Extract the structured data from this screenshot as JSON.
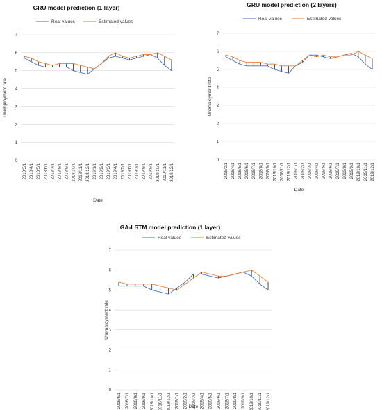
{
  "chart_data": [
    {
      "type": "line",
      "title": "GRU model prediction (1 layer)",
      "xlabel": "Date",
      "ylabel": "Unemployment rate",
      "ylim": [
        0,
        7
      ],
      "yticks": [
        "0",
        "1",
        "2",
        "3",
        "4",
        "5",
        "6",
        "7"
      ],
      "grid": true,
      "legend_position": "top",
      "categories": [
        "2018/3/1",
        "2018/4/1",
        "2018/5/1",
        "2018/6/1",
        "2018/7/1",
        "2018/8/1",
        "2018/9/1",
        "2018/10/1",
        "2018/11/1",
        "2018/12/1",
        "2019/1/1",
        "2019/2/1",
        "2019/3/1",
        "2019/4/1",
        "2019/5/1",
        "2019/6/1",
        "2019/7/1",
        "2019/8/1",
        "2019/9/1",
        "2019/10/1",
        "2019/11/1",
        "2019/12/1"
      ],
      "series": [
        {
          "name": "Real values",
          "color": "#4472c4",
          "values": [
            5.7,
            5.5,
            5.3,
            5.2,
            5.2,
            5.2,
            5.2,
            5.0,
            4.9,
            4.8,
            5.1,
            5.4,
            5.7,
            5.8,
            5.7,
            5.6,
            5.7,
            5.8,
            5.9,
            5.7,
            5.3,
            5.0
          ]
        },
        {
          "name": "Estimated values",
          "color": "#ed7d31",
          "values": [
            5.8,
            5.7,
            5.5,
            5.4,
            5.3,
            5.4,
            5.4,
            5.4,
            5.3,
            5.2,
            5.1,
            5.4,
            5.8,
            6.0,
            5.8,
            5.7,
            5.8,
            5.9,
            5.9,
            6.0,
            5.8,
            5.6
          ]
        }
      ]
    },
    {
      "type": "line",
      "title": "GRU model prediction (2 layers)",
      "xlabel": "Date",
      "ylabel": "Unemployment rate",
      "ylim": [
        0,
        7
      ],
      "yticks": [
        "0",
        "1",
        "2",
        "3",
        "4",
        "5",
        "6",
        "7"
      ],
      "grid": true,
      "legend_position": "top",
      "categories": [
        "2018/3/1",
        "2018/4/1",
        "2018/5/1",
        "2018/6/1",
        "2018/7/1",
        "2018/8/1",
        "2018/9/1",
        "2018/10/1",
        "2018/11/1",
        "2018/12/1",
        "2019/1/1",
        "2019/2/1",
        "2019/3/1",
        "2019/4/1",
        "2019/5/1",
        "2019/6/1",
        "2019/7/1",
        "2019/8/1",
        "2019/9/1",
        "2019/10/1",
        "2019/11/1",
        "2019/12/1"
      ],
      "series": [
        {
          "name": "Real values",
          "color": "#4472c4",
          "values": [
            5.7,
            5.5,
            5.3,
            5.2,
            5.2,
            5.2,
            5.2,
            5.0,
            4.9,
            4.8,
            5.2,
            5.4,
            5.8,
            5.8,
            5.7,
            5.6,
            5.7,
            5.8,
            5.9,
            5.7,
            5.3,
            5.0
          ]
        },
        {
          "name": "Estimated values",
          "color": "#ed7d31",
          "values": [
            5.8,
            5.7,
            5.5,
            5.4,
            5.4,
            5.4,
            5.3,
            5.3,
            5.2,
            5.2,
            5.2,
            5.5,
            5.8,
            5.7,
            5.8,
            5.7,
            5.7,
            5.8,
            5.8,
            6.0,
            5.8,
            5.6
          ]
        }
      ]
    },
    {
      "type": "line",
      "title": "GA-LSTM model prediction (1 layer)",
      "xlabel": "Date",
      "ylabel": "Unemployment rate",
      "ylim": [
        0,
        7
      ],
      "yticks": [
        "0",
        "1",
        "2",
        "3",
        "4",
        "5",
        "6",
        "7"
      ],
      "grid": true,
      "legend_position": "top",
      "categories": [
        "2018/6/1",
        "2018/7/1",
        "2018/8/1",
        "2018/9/1",
        "2018/10/1",
        "2018/11/1",
        "2018/12/1",
        "2019/1/1",
        "2019/2/1",
        "2019/3/1",
        "2019/4/1",
        "2019/5/1",
        "2019/6/1",
        "2019/7/1",
        "2019/8/1",
        "2019/9/1",
        "2019/10/1",
        "2019/11/1",
        "2019/12/1"
      ],
      "series": [
        {
          "name": "Real values",
          "color": "#4472c4",
          "values": [
            5.2,
            5.2,
            5.2,
            5.2,
            5.0,
            4.9,
            4.8,
            5.1,
            5.4,
            5.8,
            5.8,
            5.7,
            5.6,
            5.7,
            5.8,
            5.9,
            5.7,
            5.3,
            5.0
          ]
        },
        {
          "name": "Estimated values",
          "color": "#ed7d31",
          "values": [
            5.4,
            5.3,
            5.3,
            5.3,
            5.3,
            5.2,
            5.1,
            5.0,
            5.3,
            5.6,
            5.9,
            5.8,
            5.7,
            5.7,
            5.8,
            5.9,
            6.0,
            5.7,
            5.4
          ]
        }
      ]
    }
  ]
}
